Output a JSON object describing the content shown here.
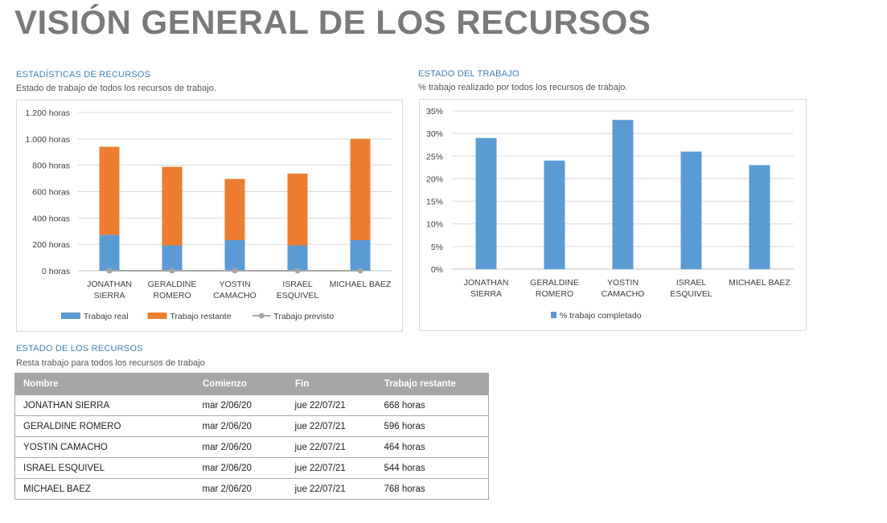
{
  "page": {
    "title": "VISIÓN GENERAL DE LOS RECURSOS"
  },
  "stats_section": {
    "title": "ESTADÍSTICAS DE RECURSOS",
    "subtitle": "Estado de trabajo de todos los recursos de trabajo."
  },
  "work_section": {
    "title": "ESTADO DEL TRABAJO",
    "subtitle": "% trabajo realizado por todos los recursos de trabajo."
  },
  "status_section": {
    "title": "ESTADO DE LOS RECURSOS",
    "subtitle": "Resta trabajo para todos los recursos de trabajo",
    "columns": [
      "Nombre",
      "Comienzo",
      "Fin",
      "Trabajo restante"
    ],
    "rows": [
      [
        "JONATHAN SIERRA",
        "mar 2/06/20",
        "jue 22/07/21",
        "668 horas"
      ],
      [
        "GERALDINE ROMERO",
        "mar 2/06/20",
        "jue 22/07/21",
        "596 horas"
      ],
      [
        "YOSTIN CAMACHO",
        "mar 2/06/20",
        "jue 22/07/21",
        "464 horas"
      ],
      [
        "ISRAEL  ESQUIVEL",
        "mar 2/06/20",
        "jue 22/07/21",
        "544 horas"
      ],
      [
        "MICHAEL BAEZ",
        "mar 2/06/20",
        "jue 22/07/21",
        "768 horas"
      ]
    ]
  },
  "chart_data": [
    {
      "type": "bar",
      "stacked": true,
      "categories": [
        [
          "JONATHAN",
          "SIERRA"
        ],
        [
          "GERALDINE",
          "ROMERO"
        ],
        [
          "YOSTIN",
          "CAMACHO"
        ],
        [
          "ISRAEL",
          "ESQUIVEL"
        ],
        [
          "MICHAEL BAEZ"
        ]
      ],
      "series": [
        {
          "name": "Trabajo real",
          "kind": "bar",
          "color": "#5b9bd5",
          "values": [
            272,
            192,
            232,
            192,
            232
          ]
        },
        {
          "name": "Trabajo restante",
          "kind": "bar",
          "color": "#ed7d31",
          "values": [
            668,
            596,
            464,
            544,
            768
          ]
        },
        {
          "name": "Trabajo previsto",
          "kind": "line",
          "color": "#a5a5a5",
          "values": [
            0,
            0,
            0,
            0,
            0
          ]
        }
      ],
      "ylim": [
        0,
        1200
      ],
      "yticks": [
        "0 horas",
        "200 horas",
        "400 horas",
        "600 horas",
        "800 horas",
        "1.000 horas",
        "1.200 horas"
      ],
      "grid": true,
      "legend": "bottom"
    },
    {
      "type": "bar",
      "categories": [
        [
          "JONATHAN",
          "SIERRA"
        ],
        [
          "GERALDINE",
          "ROMERO"
        ],
        [
          "YOSTIN",
          "CAMACHO"
        ],
        [
          "ISRAEL",
          "ESQUIVEL"
        ],
        [
          "MICHAEL BAEZ"
        ]
      ],
      "series": [
        {
          "name": "% trabajo completado",
          "color": "#5b9bd5",
          "values": [
            29,
            24,
            33,
            26,
            23
          ]
        }
      ],
      "ylim": [
        0,
        35
      ],
      "yticks": [
        "0%",
        "5%",
        "10%",
        "15%",
        "20%",
        "25%",
        "30%",
        "35%"
      ],
      "grid": true,
      "legend": "bottom"
    }
  ]
}
